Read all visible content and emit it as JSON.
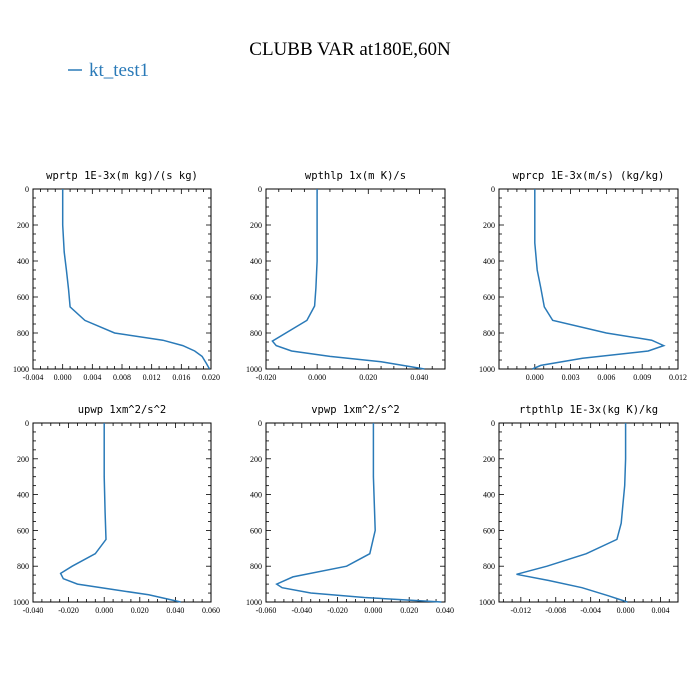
{
  "figure": {
    "title": "CLUBB VAR at180E,60N",
    "legend": "kt_test1",
    "colors": {
      "series": "#2a7ab8",
      "axis": "#000000",
      "background": "#ffffff"
    }
  },
  "chart_data": [
    {
      "type": "line",
      "title": "wprtp  1E-3x(m kg)/(s kg)",
      "xlim": [
        -0.004,
        0.02
      ],
      "xticks": [
        "-0.004",
        "0.000",
        "0.004",
        "0.008",
        "0.012",
        "0.016",
        "0.020"
      ],
      "ylim": [
        0,
        1000
      ],
      "yticks": [
        "0",
        "200",
        "400",
        "600",
        "800",
        "1000"
      ],
      "series": [
        {
          "name": "kt_test1",
          "x": [
            0.0,
            0.0,
            0.0002,
            0.0005,
            0.0008,
            0.001,
            0.003,
            0.007,
            0.0135,
            0.0162,
            0.0178,
            0.0188,
            0.0194,
            0.0198
          ],
          "y": [
            0,
            200,
            350,
            450,
            560,
            655,
            730,
            800,
            840,
            870,
            900,
            930,
            970,
            1000
          ]
        }
      ]
    },
    {
      "type": "line",
      "title": "wpthlp  1x(m K)/s",
      "xlim": [
        -0.02,
        0.05
      ],
      "xticks": [
        "-0.020",
        "0.000",
        "0.020",
        "0.040"
      ],
      "ylim": [
        0,
        1000
      ],
      "yticks": [
        "0",
        "200",
        "400",
        "600",
        "800",
        "1000"
      ],
      "series": [
        {
          "name": "kt_test1",
          "x": [
            0.0,
            0.0,
            0.0,
            -0.0005,
            -0.001,
            -0.004,
            -0.0175,
            -0.016,
            -0.01,
            0.005,
            0.025,
            0.042
          ],
          "y": [
            0,
            200,
            400,
            550,
            650,
            730,
            845,
            870,
            900,
            930,
            960,
            1000
          ]
        }
      ]
    },
    {
      "type": "line",
      "title": "wprcp  1E-3x(m/s) (kg/kg)",
      "xlim": [
        -0.003,
        0.012
      ],
      "xticks": [
        "0.000",
        "0.003",
        "0.006",
        "0.009",
        "0.012"
      ],
      "ylim": [
        0,
        1000
      ],
      "yticks": [
        "0",
        "200",
        "400",
        "600",
        "800",
        "1000"
      ],
      "series": [
        {
          "name": "kt_test1",
          "x": [
            0.0,
            0.0,
            0.0002,
            0.0005,
            0.0008,
            0.0015,
            0.006,
            0.0098,
            0.0108,
            0.0095,
            0.004,
            0.0005,
            -0.0002
          ],
          "y": [
            0,
            300,
            450,
            550,
            655,
            730,
            800,
            840,
            870,
            900,
            940,
            980,
            1000
          ]
        }
      ]
    },
    {
      "type": "line",
      "title": "upwp  1xm^2/s^2",
      "xlim": [
        -0.04,
        0.06
      ],
      "xticks": [
        "-0.040",
        "-0.020",
        "0.000",
        "0.020",
        "0.040",
        "0.060"
      ],
      "ylim": [
        0,
        1000
      ],
      "yticks": [
        "0",
        "200",
        "400",
        "600",
        "800",
        "1000"
      ],
      "series": [
        {
          "name": "kt_test1",
          "x": [
            0.0,
            0.0,
            0.0005,
            0.001,
            -0.005,
            -0.018,
            -0.0245,
            -0.023,
            -0.015,
            0.005,
            0.025,
            0.043
          ],
          "y": [
            0,
            300,
            500,
            650,
            730,
            800,
            840,
            870,
            900,
            930,
            960,
            1000
          ]
        }
      ]
    },
    {
      "type": "line",
      "title": "vpwp  1xm^2/s^2",
      "xlim": [
        -0.06,
        0.04
      ],
      "xticks": [
        "-0.060",
        "-0.040",
        "-0.020",
        "0.000",
        "0.020",
        "0.040"
      ],
      "ylim": [
        0,
        1000
      ],
      "yticks": [
        "0",
        "200",
        "400",
        "600",
        "800",
        "1000"
      ],
      "series": [
        {
          "name": "kt_test1",
          "x": [
            0.0,
            0.0,
            0.0005,
            0.001,
            -0.002,
            -0.015,
            -0.045,
            -0.054,
            -0.051,
            -0.035,
            -0.005,
            0.038
          ],
          "y": [
            0,
            300,
            450,
            600,
            730,
            800,
            860,
            900,
            920,
            950,
            975,
            1000
          ]
        }
      ]
    },
    {
      "type": "line",
      "title": "rtpthlp  1E-3x(kg K)/kg",
      "xlim": [
        -0.0145,
        0.006
      ],
      "xticks": [
        "-0.012",
        "-0.008",
        "-0.004",
        "0.000",
        "0.004"
      ],
      "ylim": [
        0,
        1000
      ],
      "yticks": [
        "0",
        "200",
        "400",
        "600",
        "800",
        "1000"
      ],
      "series": [
        {
          "name": "kt_test1",
          "x": [
            0.0,
            0.0,
            -0.0001,
            -0.0003,
            -0.0005,
            -0.001,
            -0.0045,
            -0.009,
            -0.0125,
            -0.0088,
            -0.005,
            -0.002,
            0.0002
          ],
          "y": [
            0,
            200,
            350,
            450,
            560,
            650,
            730,
            800,
            845,
            880,
            920,
            965,
            1000
          ]
        }
      ]
    }
  ]
}
